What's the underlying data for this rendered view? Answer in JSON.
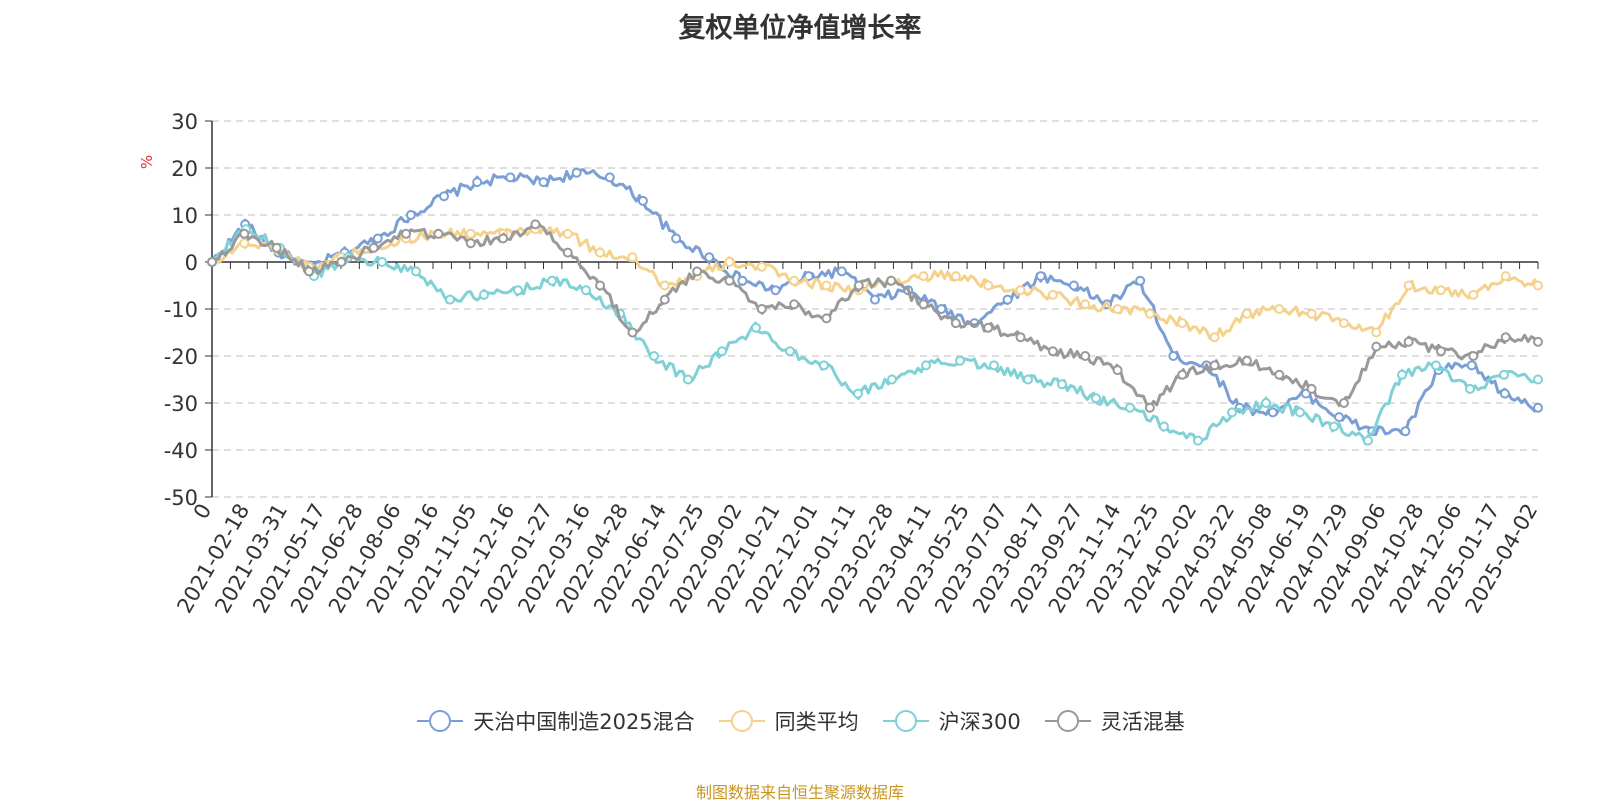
{
  "chart_data": {
    "type": "line",
    "title": "复权单位净值增长率",
    "ylabel": "%",
    "ylim": [
      -50,
      30
    ],
    "yticks": [
      30,
      20,
      10,
      0,
      -10,
      -20,
      -30,
      -40,
      -50
    ],
    "grid": true,
    "legend_position": "bottom",
    "x_tick_labels": [
      "0",
      "2021-02-18",
      "2021-03-31",
      "2021-05-17",
      "2021-06-28",
      "2021-08-06",
      "2021-09-16",
      "2021-11-05",
      "2021-12-16",
      "2022-01-27",
      "2022-03-16",
      "2022-04-28",
      "2022-06-14",
      "2022-07-25",
      "2022-09-02",
      "2022-10-21",
      "2022-12-01",
      "2023-01-11",
      "2023-02-28",
      "2023-04-11",
      "2023-05-25",
      "2023-07-07",
      "2023-08-17",
      "2023-09-27",
      "2023-11-14",
      "2023-12-25",
      "2024-02-02",
      "2024-03-22",
      "2024-05-08",
      "2024-06-19",
      "2024-07-29",
      "2024-09-06",
      "2024-10-28",
      "2024-12-06",
      "2025-01-17",
      "2025-04-02"
    ],
    "series": [
      {
        "name": "天治中国制造2025混合",
        "color": "#7b9fd4",
        "values": [
          0,
          8,
          2,
          -1,
          2,
          5,
          10,
          14,
          17,
          18,
          17,
          19,
          18,
          13,
          5,
          1,
          -4,
          -6,
          -3,
          -2,
          -8,
          -6,
          -10,
          -13,
          -8,
          -3,
          -5,
          -9,
          -4,
          -20,
          -22,
          -31,
          -32,
          -28,
          -33,
          -36,
          -36,
          -23,
          -22,
          -28,
          -31
        ]
      },
      {
        "name": "同类平均",
        "color": "#f5d28c",
        "values": [
          0,
          4,
          3,
          -1,
          1,
          3,
          5,
          6,
          6,
          6,
          7,
          6,
          2,
          1,
          -5,
          -3,
          0,
          -1,
          -4,
          -5,
          -6,
          -4,
          -3,
          -3,
          -5,
          -6,
          -7,
          -9,
          -10,
          -11,
          -13,
          -16,
          -11,
          -10,
          -11,
          -13,
          -15,
          -5,
          -6,
          -7,
          -3,
          -5
        ]
      },
      {
        "name": "沪深300",
        "color": "#7fd1d6",
        "values": [
          0,
          7,
          3,
          -3,
          1,
          0,
          -2,
          -8,
          -7,
          -6,
          -4,
          -6,
          -11,
          -20,
          -25,
          -19,
          -14,
          -19,
          -22,
          -28,
          -25,
          -22,
          -21,
          -22,
          -25,
          -26,
          -29,
          -31,
          -35,
          -38,
          -32,
          -30,
          -32,
          -35,
          -38,
          -24,
          -22,
          -27,
          -24,
          -25
        ]
      },
      {
        "name": "灵活混基",
        "color": "#999999",
        "values": [
          0,
          6,
          3,
          -2,
          0,
          3,
          6,
          6,
          4,
          5,
          8,
          2,
          -5,
          -15,
          -8,
          -2,
          -4,
          -10,
          -9,
          -12,
          -5,
          -4,
          -9,
          -13,
          -14,
          -16,
          -19,
          -20,
          -23,
          -31,
          -24,
          -22,
          -21,
          -24,
          -27,
          -30,
          -18,
          -17,
          -19,
          -20,
          -16,
          -17
        ]
      }
    ]
  },
  "source_note": "制图数据来自恒生聚源数据库"
}
